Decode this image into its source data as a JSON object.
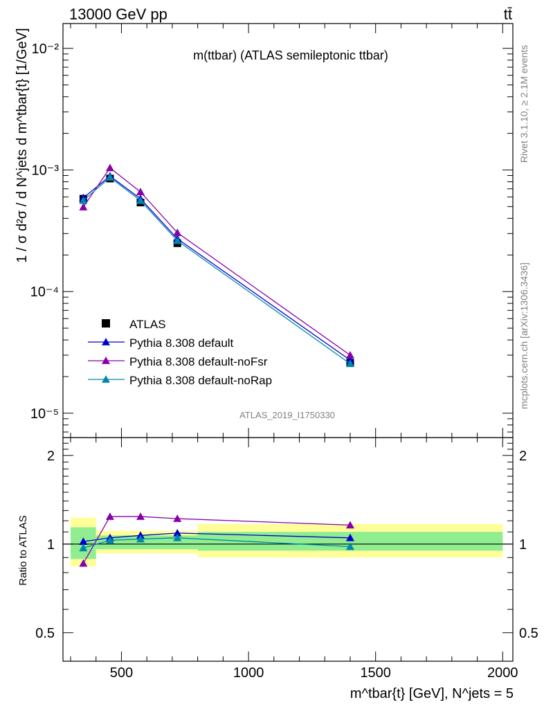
{
  "header": {
    "beam": "13000 GeV pp",
    "process": "tt̄"
  },
  "side_labels": {
    "rivet": "Rivet 3.1.10, ≥ 2.1M events",
    "mcplots": "mcplots.cern.ch [arXiv:1306.3436]"
  },
  "chart_data": {
    "type": "line",
    "title": "m(ttbar) (ATLAS semileptonic ttbar)",
    "analysis": "ATLAS_2019_I1750330",
    "ylabel_main": "1 / σ d²σ / d N^jets d m^tbar{t} [1/GeV]",
    "ylabel_ratio": "Ratio to ATLAS",
    "xlabel": "m^tbar{t} [GeV], N^jets = 5",
    "xlim": [
      270,
      2040
    ],
    "ylim_main": [
      6.3e-06,
      0.016
    ],
    "yscale_main": "log",
    "ylim_ratio": [
      0.4,
      2.3
    ],
    "yscale_ratio": "log",
    "x_ticks": [
      500,
      1000,
      1500,
      2000
    ],
    "x_tick_labels": [
      "500",
      "1000",
      "1500",
      "2000"
    ],
    "y_ticks_main": [
      1e-05,
      0.0001,
      0.001,
      0.01
    ],
    "y_tick_labels_main": [
      "10⁻⁵",
      "10⁻⁴",
      "10⁻³",
      "10⁻²"
    ],
    "y_ticks_ratio": [
      0.5,
      1,
      2
    ],
    "y_tick_labels_ratio": [
      "0.5",
      "1",
      "2"
    ],
    "bins": [
      [
        300,
        400
      ],
      [
        400,
        500
      ],
      [
        500,
        650
      ],
      [
        650,
        800
      ],
      [
        800,
        2000
      ]
    ],
    "data": {
      "name": "ATLAS",
      "x": [
        350,
        455,
        575,
        720,
        1400
      ],
      "y": [
        0.00058,
        0.00085,
        0.00054,
        0.00025,
        2.6e-05
      ],
      "stat_band": [
        [
          0.89,
          1.14
        ],
        [
          0.96,
          1.07
        ],
        [
          0.96,
          1.07
        ],
        [
          0.96,
          1.07
        ],
        [
          0.95,
          1.1
        ]
      ],
      "total_band": [
        [
          0.84,
          1.23
        ],
        [
          0.93,
          1.11
        ],
        [
          0.93,
          1.11
        ],
        [
          0.93,
          1.11
        ],
        [
          0.9,
          1.17
        ]
      ]
    },
    "series": [
      {
        "name": "Pythia 8.308 default",
        "color": "#0000cc",
        "x": [
          350,
          455,
          575,
          720,
          1400
        ],
        "y": [
          0.00059,
          0.00089,
          0.00058,
          0.000272,
          2.73e-05
        ],
        "ratio": [
          1.02,
          1.05,
          1.07,
          1.09,
          1.05
        ]
      },
      {
        "name": "Pythia 8.308 default-noFsr",
        "color": "#8800aa",
        "x": [
          350,
          455,
          575,
          720,
          1400
        ],
        "y": [
          0.000495,
          0.00104,
          0.00066,
          0.000305,
          3e-05
        ],
        "ratio": [
          0.86,
          1.24,
          1.24,
          1.22,
          1.16
        ]
      },
      {
        "name": "Pythia 8.308 default-noRap",
        "color": "#0088aa",
        "x": [
          350,
          455,
          575,
          720,
          1400
        ],
        "y": [
          0.00056,
          0.00087,
          0.00056,
          0.000262,
          2.55e-05
        ],
        "ratio": [
          0.97,
          1.03,
          1.04,
          1.05,
          0.98
        ]
      }
    ],
    "band_colors": {
      "stat": "#90ee90",
      "total": "#ffff99"
    },
    "legend": "top-left"
  }
}
